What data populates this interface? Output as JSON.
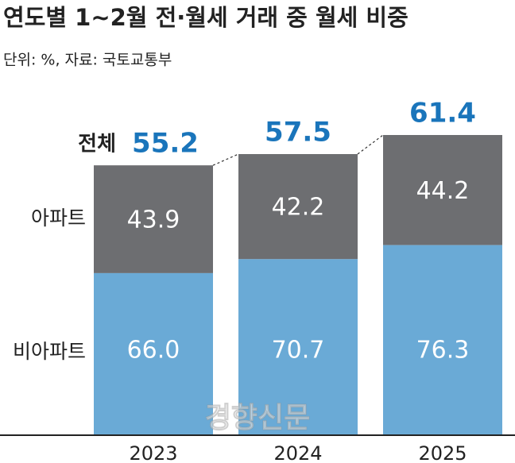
{
  "chart_data": {
    "type": "bar",
    "title": "연도별 1~2월 전·월세 거래 중 월세 비중",
    "subtitle": "단위: %, 자료: 국토교통부",
    "categories": [
      "2023",
      "2024",
      "2025"
    ],
    "total": {
      "name": "전체",
      "color": "#1a75bb",
      "values": [
        55.2,
        57.5,
        61.4
      ]
    },
    "series": [
      {
        "name": "아파트",
        "color": "#6d6e71",
        "values": [
          43.9,
          42.2,
          44.2
        ]
      },
      {
        "name": "비아파트",
        "color": "#6aaad6",
        "values": [
          66.0,
          70.7,
          76.3
        ],
        "value_labels": [
          "66.0",
          "70.7",
          "76.3"
        ]
      }
    ],
    "watermark": "경향신문"
  }
}
